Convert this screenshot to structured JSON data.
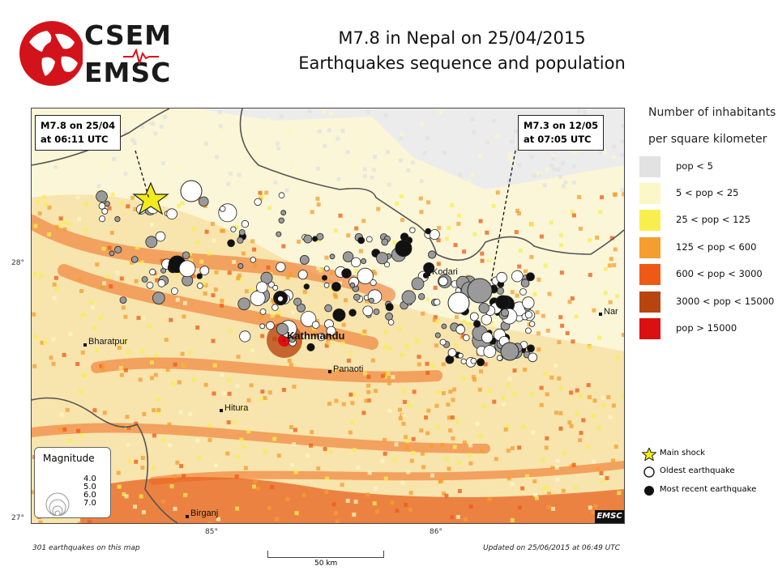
{
  "logo": {
    "line1": "CSEM",
    "line2": "EMSC"
  },
  "title": {
    "line1": "M7.8 in Nepal on 25/04/2015",
    "line2": "Earthquakes sequence and population"
  },
  "callouts": {
    "main": {
      "line1": "M7.8 on 25/04",
      "line2": "at 06:11 UTC"
    },
    "second": {
      "line1": "M7.3 on 12/05",
      "line2": "at 07:05 UTC"
    }
  },
  "axes": {
    "lat_28": "28°",
    "lat_27": "27°",
    "lon_85": "85°",
    "lon_86": "86°"
  },
  "cities": [
    {
      "name": "Bharatpur",
      "capital": false
    },
    {
      "name": "Kathmandu",
      "capital": true
    },
    {
      "name": "Panaoti",
      "capital": false
    },
    {
      "name": "Hitura",
      "capital": false
    },
    {
      "name": "Birganj",
      "capital": false
    },
    {
      "name": "Kodari",
      "capital": false
    },
    {
      "name": "Nar",
      "capital": false
    }
  ],
  "magnitude_legend": {
    "title": "Magnitude",
    "values": [
      "4.0",
      "5.0",
      "6.0",
      "7.0"
    ]
  },
  "map_tag": "EMSC",
  "population_legend": {
    "title_line1": "Number of inhabitants",
    "title_line2": "per square kilometer",
    "items": [
      {
        "label": "pop < 5",
        "color": "#e2e2e2"
      },
      {
        "label": "5 < pop < 25",
        "color": "#fbf7c6"
      },
      {
        "label": "25 < pop < 125",
        "color": "#f8ef4e"
      },
      {
        "label": "125 < pop < 600",
        "color": "#f59d2e"
      },
      {
        "label": "600 < pop < 3000",
        "color": "#ee5a16"
      },
      {
        "label": "3000 < pop < 15000",
        "color": "#b8450f"
      },
      {
        "label": "pop > 15000",
        "color": "#dc1010"
      }
    ]
  },
  "symbol_legend": {
    "main_shock": "Main shock",
    "oldest": "Oldest earthquake",
    "recent": "Most recent earthquake"
  },
  "footer": {
    "count": "301 earthquakes on this map",
    "updated": "Updated on 25/06/2015 at 06:49 UTC",
    "scale": "50 km"
  }
}
